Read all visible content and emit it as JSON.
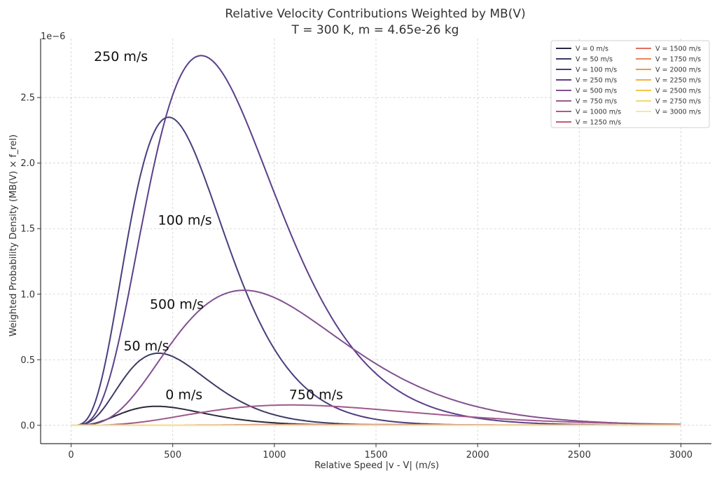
{
  "chart_data": {
    "type": "line",
    "title": "Relative Velocity Contributions Weighted by MB(V)",
    "subtitle": "T = 300 K, m = 4.65e-26 kg",
    "xlabel": "Relative Speed |v - V| (m/s)",
    "ylabel": "Weighted Probability Density (MB(V) × f_rel)",
    "y_multiplier": "1e−6",
    "xlim": [
      -150,
      3150
    ],
    "ylim": [
      -0.14,
      2.95
    ],
    "x_ticks": [
      0,
      500,
      1000,
      1500,
      2000,
      2500,
      3000
    ],
    "x_tick_labels": [
      "0",
      "500",
      "1000",
      "1500",
      "2000",
      "2500",
      "3000"
    ],
    "y_ticks": [
      0.0,
      0.5,
      1.0,
      1.5,
      2.0,
      2.5
    ],
    "y_tick_labels": [
      "0.0",
      "0.5",
      "1.0",
      "1.5",
      "2.0",
      "2.5"
    ],
    "grid": true,
    "legend_position": "top-right",
    "x_range": [
      0,
      3000
    ],
    "series": [
      {
        "name": "V = 0 m/s",
        "color": "#2a2a3e",
        "peak_x": 420,
        "peak_y": 0.145
      },
      {
        "name": "V = 50 m/s",
        "color": "#3d3b66",
        "peak_x": 430,
        "peak_y": 0.55
      },
      {
        "name": "V = 100 m/s",
        "color": "#4a3d7d",
        "peak_x": 480,
        "peak_y": 2.35
      },
      {
        "name": "V = 250 m/s",
        "color": "#5b3f8a",
        "peak_x": 640,
        "peak_y": 2.82
      },
      {
        "name": "V = 500 m/s",
        "color": "#83508f",
        "peak_x": 850,
        "peak_y": 1.03
      },
      {
        "name": "V = 750 m/s",
        "color": "#a0588d",
        "peak_x": 1080,
        "peak_y": 0.155
      },
      {
        "name": "V = 1000 m/s",
        "color": "#b05a82",
        "peak_x": 1300,
        "peak_y": 0.006
      },
      {
        "name": "V = 1250 m/s",
        "color": "#c85a6e",
        "peak_x": 1500,
        "peak_y": 0.0
      },
      {
        "name": "V = 1500 m/s",
        "color": "#e0705f",
        "peak_x": 1750,
        "peak_y": 0.0
      },
      {
        "name": "V = 1750 m/s",
        "color": "#ea8555",
        "peak_x": 2000,
        "peak_y": 0.0
      },
      {
        "name": "V = 2000 m/s",
        "color": "#ef9a45",
        "peak_x": 2250,
        "peak_y": 0.0
      },
      {
        "name": "V = 2250 m/s",
        "color": "#f2b13e",
        "peak_x": 2500,
        "peak_y": 0.0
      },
      {
        "name": "V = 2500 m/s",
        "color": "#f0c74b",
        "peak_x": 2750,
        "peak_y": 0.0
      },
      {
        "name": "V = 2750 m/s",
        "color": "#f2d877",
        "peak_x": 3000,
        "peak_y": 0.0
      },
      {
        "name": "V = 3000 m/s",
        "color": "#f6e8a4",
        "peak_x": 3000,
        "peak_y": 0.0
      }
    ],
    "annotations": [
      {
        "text": "250 m/s",
        "x": 245,
        "y": 2.78
      },
      {
        "text": "100 m/s",
        "x": 560,
        "y": 1.53
      },
      {
        "text": "500 m/s",
        "x": 520,
        "y": 0.89
      },
      {
        "text": "50 m/s",
        "x": 370,
        "y": 0.57
      },
      {
        "text": "0 m/s",
        "x": 555,
        "y": 0.2
      },
      {
        "text": "750 m/s",
        "x": 1205,
        "y": 0.2
      }
    ]
  }
}
